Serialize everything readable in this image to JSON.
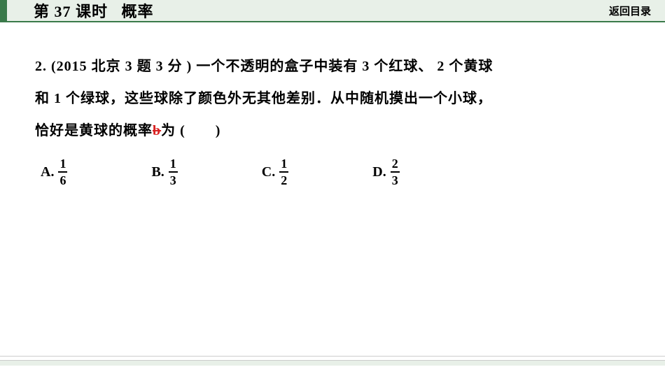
{
  "header": {
    "lesson_prefix": "第",
    "lesson_number": "37",
    "lesson_suffix": "课时",
    "title": "概率",
    "return_link": "返回目录",
    "background_color": "#e8f0e8",
    "border_color": "#3a7a4a"
  },
  "question": {
    "number": "2.",
    "source": "(2015 北京 3 题 3 分 )",
    "text_line1": "一个不透明的盒子中装有",
    "red_count": "3",
    "text_red": "个红球、",
    "yellow_count": "2",
    "text_yellow": "个黄球",
    "text_line2_start": "和",
    "green_count": "1",
    "text_line2_mid": "个绿球，这些球除了颜色外无其他差别．从中随机摸出一个小球，",
    "text_line3": "恰好是黄球的概率",
    "answer_mark": "b",
    "text_wei": "为",
    "paren_open": "(",
    "paren_close": ")"
  },
  "options": [
    {
      "label": "A.",
      "numerator": "1",
      "denominator": "6"
    },
    {
      "label": "B.",
      "numerator": "1",
      "denominator": "3"
    },
    {
      "label": "C.",
      "numerator": "1",
      "denominator": "2"
    },
    {
      "label": "D.",
      "numerator": "2",
      "denominator": "3"
    }
  ],
  "styling": {
    "body_width": 950,
    "body_height": 535,
    "question_fontsize": 20,
    "option_fontsize": 20,
    "answer_color": "#d82020",
    "text_color": "#000000",
    "background_color": "#ffffff"
  }
}
